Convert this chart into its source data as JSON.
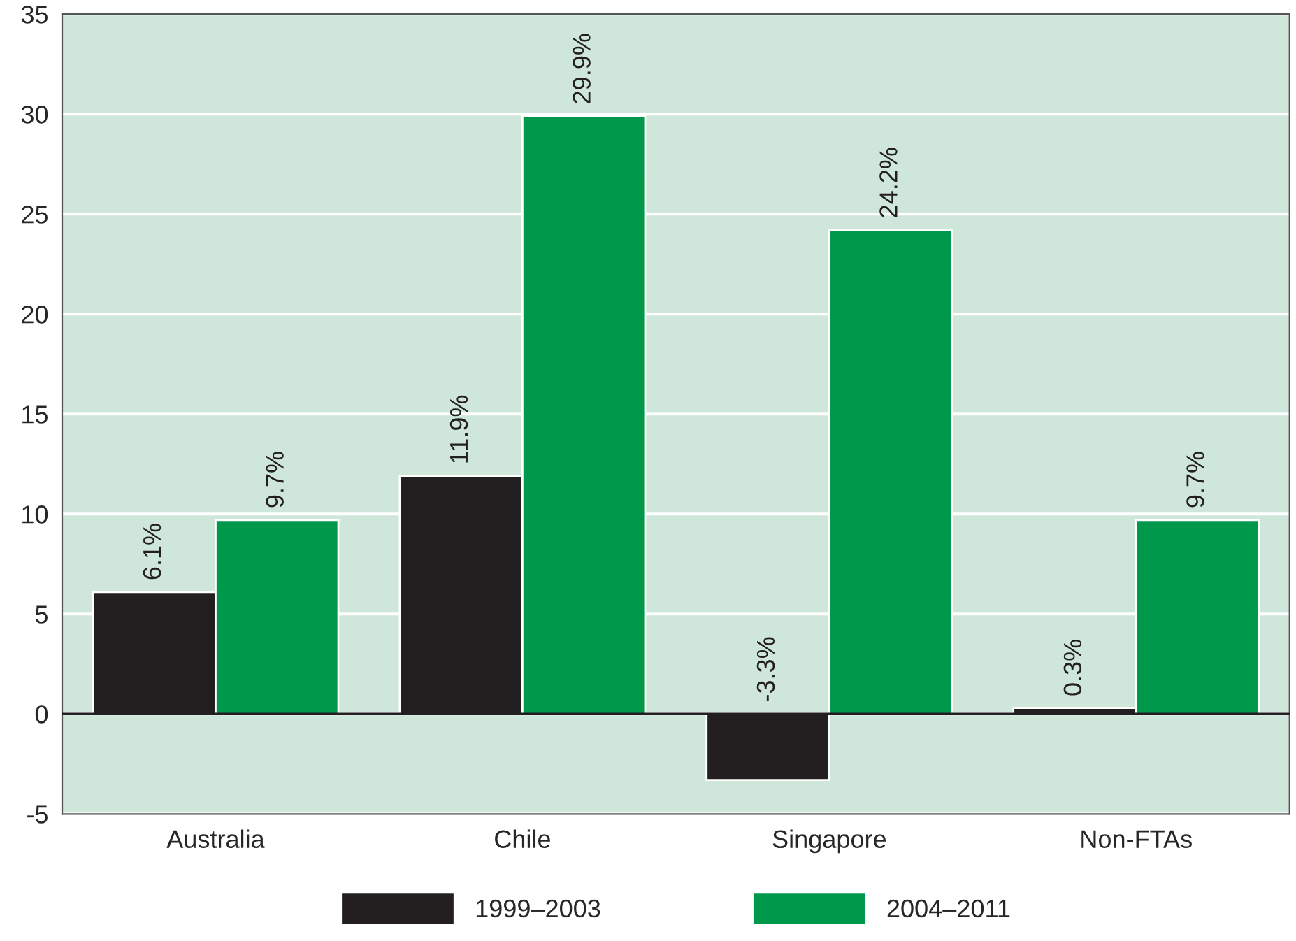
{
  "chart_data": {
    "type": "bar",
    "categories": [
      "Australia",
      "Chile",
      "Singapore",
      "Non-FTAs"
    ],
    "series": [
      {
        "name": "1999–2003",
        "color": "#231f20",
        "values": [
          6.1,
          11.9,
          -3.3,
          0.3
        ],
        "value_labels": [
          "6.1%",
          "11.9%",
          "-3.3%",
          "0.3%"
        ]
      },
      {
        "name": "2004–2011",
        "color": "#00994c",
        "values": [
          9.7,
          29.9,
          24.2,
          9.7
        ],
        "value_labels": [
          "9.7%",
          "29.9%",
          "24.2%",
          "9.7%"
        ]
      }
    ],
    "ylim": [
      -5,
      35
    ],
    "yticks": [
      -5,
      0,
      5,
      10,
      15,
      20,
      25,
      30,
      35
    ],
    "grid": "y",
    "legend": "bottom"
  }
}
